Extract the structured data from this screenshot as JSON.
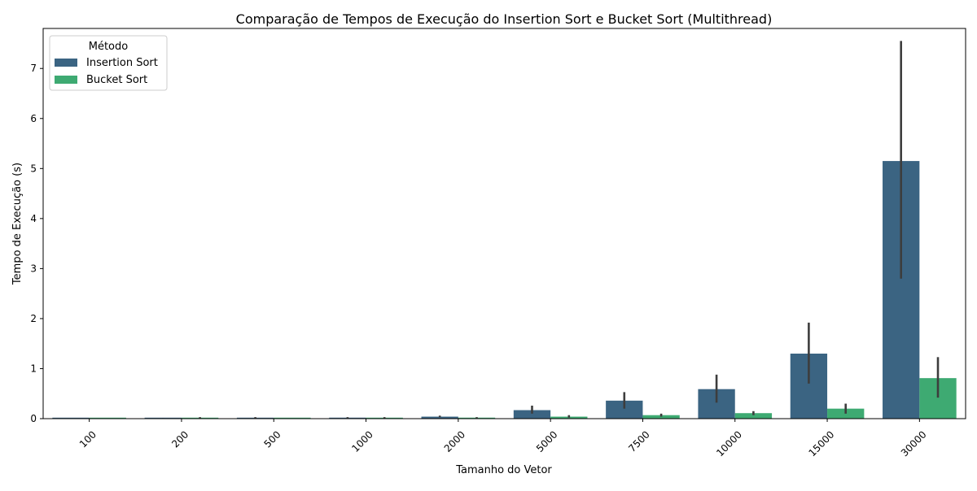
{
  "chart_data": {
    "type": "bar",
    "title": "Comparação de Tempos de Execução do Insertion Sort e Bucket Sort (Multithread)",
    "xlabel": "Tamanho do Vetor",
    "ylabel": "Tempo de Execução (s)",
    "categories": [
      "100",
      "200",
      "500",
      "1000",
      "2000",
      "5000",
      "7500",
      "10000",
      "15000",
      "30000"
    ],
    "ylim": [
      0,
      7.8
    ],
    "yticks": [
      0,
      1,
      2,
      3,
      4,
      5,
      6,
      7
    ],
    "ytick_labels": [
      "0",
      "1",
      "2",
      "3",
      "4",
      "5",
      "6",
      "7"
    ],
    "legend": {
      "title": "Método",
      "placement": "upper left"
    },
    "grid": false,
    "series": [
      {
        "name": "Insertion Sort",
        "color": "#3b6482",
        "values": [
          0.0,
          0.0,
          0.01,
          0.02,
          0.04,
          0.17,
          0.36,
          0.59,
          1.3,
          5.15
        ],
        "err_low": [
          0.0,
          0.0,
          0.0,
          0.01,
          0.03,
          0.1,
          0.2,
          0.32,
          0.7,
          2.8
        ],
        "err_high": [
          0.0,
          0.01,
          0.03,
          0.03,
          0.06,
          0.26,
          0.53,
          0.88,
          1.92,
          7.55
        ]
      },
      {
        "name": "Bucket Sort",
        "color": "#3eaa72",
        "values": [
          0.0,
          0.0,
          0.0,
          0.0,
          0.02,
          0.04,
          0.07,
          0.11,
          0.2,
          0.81
        ],
        "err_low": [
          0.0,
          0.0,
          0.0,
          0.0,
          0.01,
          0.02,
          0.04,
          0.07,
          0.1,
          0.42
        ],
        "err_high": [
          0.0,
          0.03,
          0.0,
          0.03,
          0.03,
          0.07,
          0.1,
          0.15,
          0.3,
          1.23
        ]
      }
    ]
  }
}
